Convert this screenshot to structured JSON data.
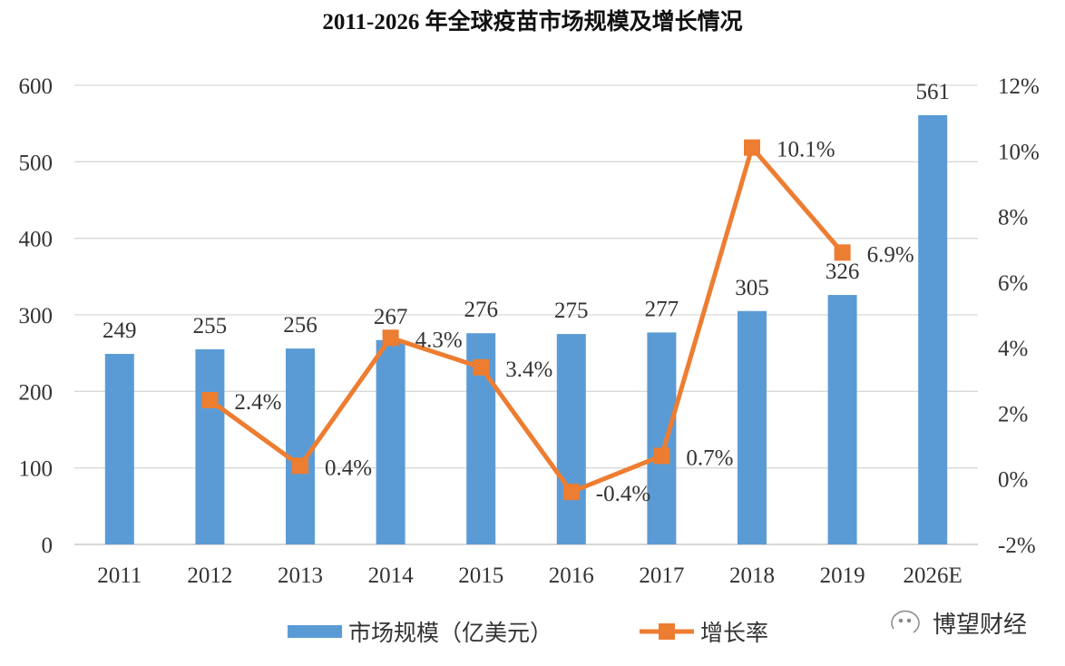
{
  "chart_data": {
    "type": "bar+line",
    "title": "2011-2026 年全球疫苗市场规模及增长情况",
    "categories": [
      "2011",
      "2012",
      "2013",
      "2014",
      "2015",
      "2016",
      "2017",
      "2018",
      "2019",
      "2026E"
    ],
    "series": [
      {
        "name": "市场规模（亿美元）",
        "type": "bar",
        "axis": "left",
        "color": "#5b9bd5",
        "values": [
          249,
          255,
          256,
          267,
          276,
          275,
          277,
          305,
          326,
          561
        ],
        "labels": [
          "249",
          "255",
          "256",
          "267",
          "276",
          "275",
          "277",
          "305",
          "326",
          "561"
        ]
      },
      {
        "name": "增长率",
        "type": "line",
        "axis": "right",
        "color": "#ed7d31",
        "values": [
          null,
          2.4,
          0.4,
          4.3,
          3.4,
          -0.4,
          0.7,
          10.1,
          6.9,
          null
        ],
        "labels": [
          null,
          "2.4%",
          "0.4%",
          "4.3%",
          "3.4%",
          "-0.4%",
          "0.7%",
          "10.1%",
          "6.9%",
          null
        ]
      }
    ],
    "left_axis": {
      "range": [
        0,
        600
      ],
      "ticks": [
        "0",
        "100",
        "200",
        "300",
        "400",
        "500",
        "600"
      ]
    },
    "right_axis": {
      "range": [
        -2,
        12
      ],
      "ticks": [
        "-2%",
        "0%",
        "2%",
        "4%",
        "6%",
        "8%",
        "10%",
        "12%"
      ]
    },
    "grid": true,
    "legend_position": "bottom"
  },
  "watermark": "博望财经"
}
